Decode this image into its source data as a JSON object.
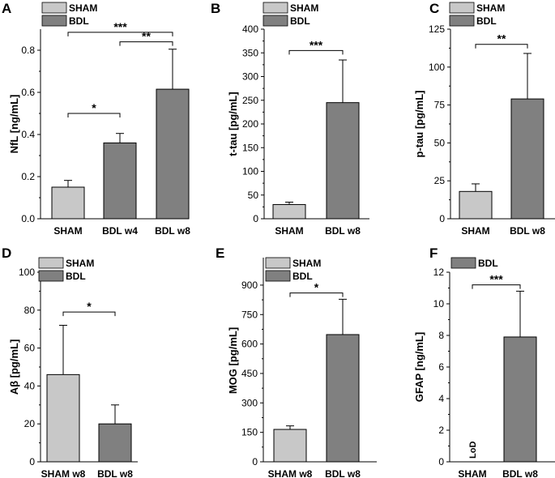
{
  "colors": {
    "sham": "#c8c8c8",
    "bdl": "#808080",
    "stroke": "#000000"
  },
  "legend": {
    "sham": "SHAM",
    "bdl": "BDL"
  },
  "chart_data": [
    {
      "panel": "A",
      "type": "bar",
      "ylabel": "NfL [ng/mL]",
      "ylim": [
        0,
        0.9
      ],
      "yticks": [
        "0.0",
        "0.2",
        "0.4",
        "0.6",
        "0.8"
      ],
      "categories": [
        "SHAM",
        "BDL w4",
        "BDL w8"
      ],
      "values": [
        0.15,
        0.36,
        0.615
      ],
      "errors": [
        0.032,
        0.045,
        0.19
      ],
      "groups": [
        "sham",
        "bdl",
        "bdl"
      ],
      "legend": [
        "sham",
        "bdl"
      ],
      "significance": [
        {
          "from": 0,
          "to": 1,
          "label": "*",
          "y": 0.5
        },
        {
          "from": 1,
          "to": 2,
          "label": "**",
          "y": 0.84
        },
        {
          "from": 0,
          "to": 2,
          "label": "***",
          "y": 0.885
        }
      ]
    },
    {
      "panel": "B",
      "type": "bar",
      "ylabel": "t-tau [pg/mL]",
      "ylim": [
        0,
        400
      ],
      "yticks": [
        "0",
        "50",
        "100",
        "150",
        "200",
        "250",
        "300",
        "350",
        "400"
      ],
      "categories": [
        "SHAM",
        "BDL w8"
      ],
      "values": [
        30,
        245
      ],
      "errors": [
        5,
        90
      ],
      "groups": [
        "sham",
        "bdl"
      ],
      "legend": [
        "sham",
        "bdl"
      ],
      "significance": [
        {
          "from": 0,
          "to": 1,
          "label": "***",
          "y": 355
        }
      ]
    },
    {
      "panel": "C",
      "type": "bar",
      "ylabel": "p-tau [pg/mL]",
      "ylim": [
        0,
        125
      ],
      "yticks": [
        "0",
        "25",
        "50",
        "75",
        "100",
        "125"
      ],
      "categories": [
        "SHAM",
        "BDL w8"
      ],
      "values": [
        18,
        79
      ],
      "errors": [
        5,
        30
      ],
      "groups": [
        "sham",
        "bdl"
      ],
      "legend": [
        "sham",
        "bdl"
      ],
      "significance": [
        {
          "from": 0,
          "to": 1,
          "label": "**",
          "y": 115
        }
      ]
    },
    {
      "panel": "D",
      "type": "bar",
      "ylabel": "Aβ [pg/mL]",
      "ylim": [
        0,
        100
      ],
      "yticks": [
        "0",
        "20",
        "40",
        "60",
        "80",
        "100"
      ],
      "categories": [
        "SHAM w8",
        "BDL w8"
      ],
      "values": [
        46,
        20
      ],
      "errors": [
        26,
        10
      ],
      "groups": [
        "sham",
        "bdl"
      ],
      "legend": [
        "sham",
        "bdl"
      ],
      "significance": [
        {
          "from": 0,
          "to": 1,
          "label": "*",
          "y": 79
        }
      ]
    },
    {
      "panel": "E",
      "type": "bar",
      "ylabel": "MOG [pg/mL]",
      "ylim": [
        0,
        1040
      ],
      "yticks": [
        "0",
        "150",
        "300",
        "450",
        "600",
        "750",
        "900"
      ],
      "categories": [
        "SHAM w8",
        "BDL w8"
      ],
      "values": [
        165,
        648
      ],
      "errors": [
        18,
        180
      ],
      "groups": [
        "sham",
        "bdl"
      ],
      "legend": [
        "sham",
        "bdl"
      ],
      "significance": [
        {
          "from": 0,
          "to": 1,
          "label": "*",
          "y": 860
        }
      ]
    },
    {
      "panel": "F",
      "type": "bar",
      "ylabel": "GFAP [ng/mL]",
      "ylim": [
        0,
        12
      ],
      "yticks": [
        "0",
        "2",
        "4",
        "6",
        "8",
        "10",
        "12"
      ],
      "categories": [
        "SHAM",
        "BDL w8"
      ],
      "values": [
        0,
        7.9
      ],
      "errors": [
        0,
        2.9
      ],
      "groups": [
        "sham",
        "bdl"
      ],
      "legend": [
        "bdl"
      ],
      "bar_notes": [
        "LoD",
        ""
      ],
      "significance": [
        {
          "from": 0,
          "to": 1,
          "label": "***",
          "y": 11.2
        }
      ]
    }
  ]
}
